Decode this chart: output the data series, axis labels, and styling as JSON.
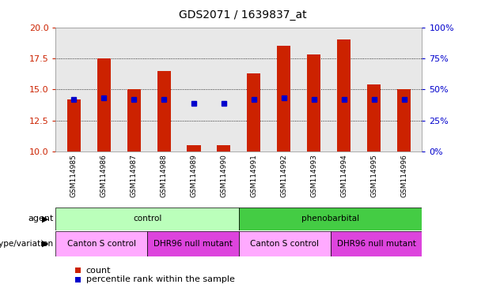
{
  "title": "GDS2071 / 1639837_at",
  "samples": [
    "GSM114985",
    "GSM114986",
    "GSM114987",
    "GSM114988",
    "GSM114989",
    "GSM114990",
    "GSM114991",
    "GSM114992",
    "GSM114993",
    "GSM114994",
    "GSM114995",
    "GSM114996"
  ],
  "counts": [
    14.2,
    17.5,
    15.0,
    16.5,
    10.5,
    10.5,
    16.3,
    18.5,
    17.8,
    19.0,
    15.4,
    15.0
  ],
  "percentile_values": [
    14.2,
    14.3,
    14.2,
    14.2,
    13.9,
    13.9,
    14.2,
    14.3,
    14.2,
    14.2,
    14.2,
    14.2
  ],
  "ylim_left": [
    10,
    20
  ],
  "ylim_right": [
    0,
    100
  ],
  "yticks_left": [
    10,
    12.5,
    15,
    17.5,
    20
  ],
  "yticks_right": [
    0,
    25,
    50,
    75,
    100
  ],
  "bar_color": "#cc2200",
  "marker_color": "#0000cc",
  "bar_width": 0.45,
  "left_tick_color": "#cc2200",
  "right_tick_color": "#0000cc",
  "bg_color": "#ffffff",
  "plot_bg_color": "#e8e8e8",
  "legend_count_label": "count",
  "legend_pct_label": "percentile rank within the sample",
  "agent_blocks": [
    {
      "label": "control",
      "start": 0,
      "end": 6,
      "color": "#bbffbb"
    },
    {
      "label": "phenobarbital",
      "start": 6,
      "end": 12,
      "color": "#44cc44"
    }
  ],
  "geno_blocks": [
    {
      "label": "Canton S control",
      "start": 0,
      "end": 3,
      "color": "#ffaaff"
    },
    {
      "label": "DHR96 null mutant",
      "start": 3,
      "end": 6,
      "color": "#dd44dd"
    },
    {
      "label": "Canton S control",
      "start": 6,
      "end": 9,
      "color": "#ffaaff"
    },
    {
      "label": "DHR96 null mutant",
      "start": 9,
      "end": 12,
      "color": "#dd44dd"
    }
  ],
  "figsize": [
    6.13,
    3.84
  ],
  "dpi": 100
}
